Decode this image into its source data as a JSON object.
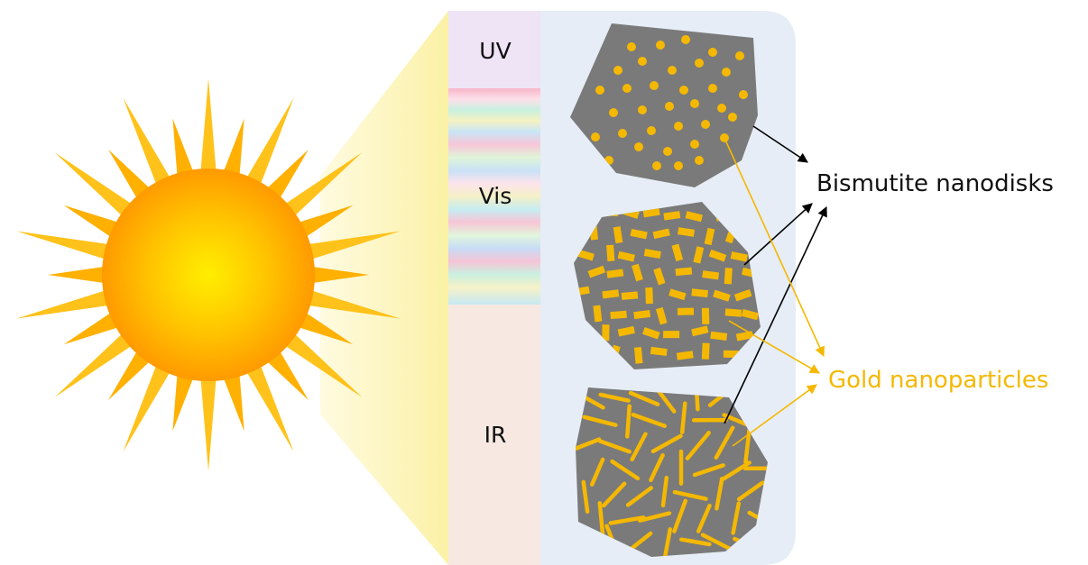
{
  "spectrum": {
    "uv_label": "UV",
    "vis_label": "Vis",
    "ir_label": "IR"
  },
  "labels": {
    "bismutite": "Bismutite nanodisks",
    "gold": "Gold nanoparticles"
  },
  "colors": {
    "gold": "#f5b800",
    "disk": "#7a7a7a",
    "panel": "#e6edf6",
    "uv_band": "#efe3f6",
    "ir_band": "#f7e9e2",
    "beam": "#fbf4b0",
    "sun_core": "#ffee00",
    "sun_edge": "#ff9900",
    "ray": "#ffc21a"
  }
}
